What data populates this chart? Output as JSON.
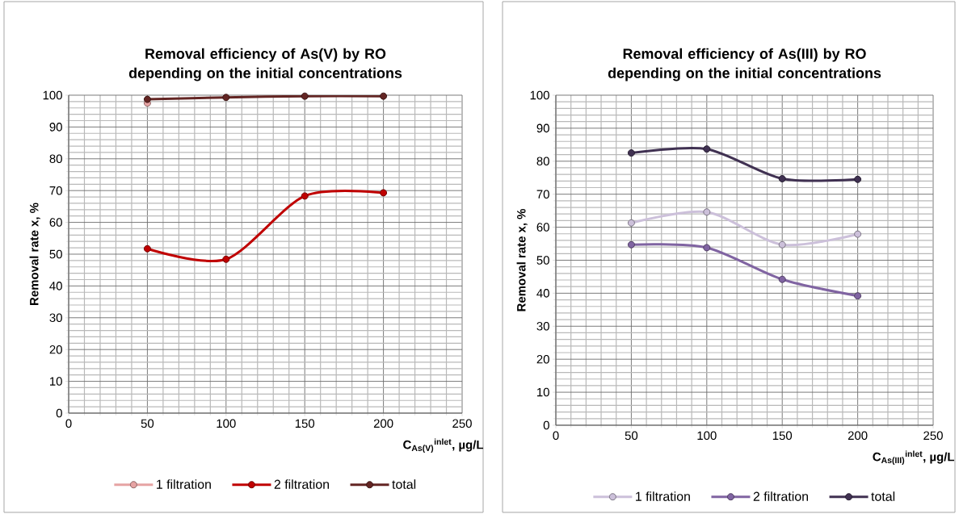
{
  "chart_data": [
    {
      "type": "line",
      "title": "Removal efficiency of As(V) by RO depending on the initial concentrations",
      "xlabel": "C$_{As(V)}$$^{inlet}$, µg/L",
      "ylabel": "Removal rate x, %",
      "x": [
        50,
        100,
        150,
        200
      ],
      "xlim": [
        0,
        250
      ],
      "xticks": [
        0,
        50,
        100,
        150,
        200,
        250
      ],
      "ylim": [
        0,
        100
      ],
      "yticks": [
        0,
        10,
        20,
        30,
        40,
        50,
        60,
        70,
        80,
        90,
        100
      ],
      "grid": true,
      "legend": "bottom",
      "marker": "circle",
      "line_style": "solid",
      "series": [
        {
          "name": "1 filtration",
          "color": "#e6a3a3",
          "values": [
            97.5,
            null,
            null,
            null
          ]
        },
        {
          "name": "2 filtration",
          "color": "#c00000",
          "values": [
            51.7,
            48.4,
            68.3,
            69.3
          ]
        },
        {
          "name": "total",
          "color": "#632523",
          "values": [
            98.7,
            99.3,
            99.7,
            99.7
          ]
        }
      ]
    },
    {
      "type": "line",
      "title": "Removal efficiency of As(III) by RO depending on the initial concentrations",
      "xlabel": "C$_{As(III)}$$^{inlet}$, µg/L",
      "ylabel": "Removal rate x, %",
      "x": [
        50,
        100,
        150,
        200
      ],
      "xlim": [
        0,
        250
      ],
      "xticks": [
        0,
        50,
        100,
        150,
        200,
        250
      ],
      "ylim": [
        0,
        100
      ],
      "yticks": [
        0,
        10,
        20,
        30,
        40,
        50,
        60,
        70,
        80,
        90,
        100
      ],
      "grid": true,
      "legend": "bottom",
      "marker": "circle",
      "line_style": "solid",
      "series": [
        {
          "name": "1 filtration",
          "color": "#ccc0da",
          "values": [
            61.3,
            64.6,
            54.7,
            57.9
          ]
        },
        {
          "name": "2 filtration",
          "color": "#8064a2",
          "values": [
            54.7,
            53.8,
            44.2,
            39.2
          ]
        },
        {
          "name": "total",
          "color": "#403152",
          "values": [
            82.5,
            83.7,
            74.7,
            74.5
          ]
        }
      ]
    }
  ]
}
